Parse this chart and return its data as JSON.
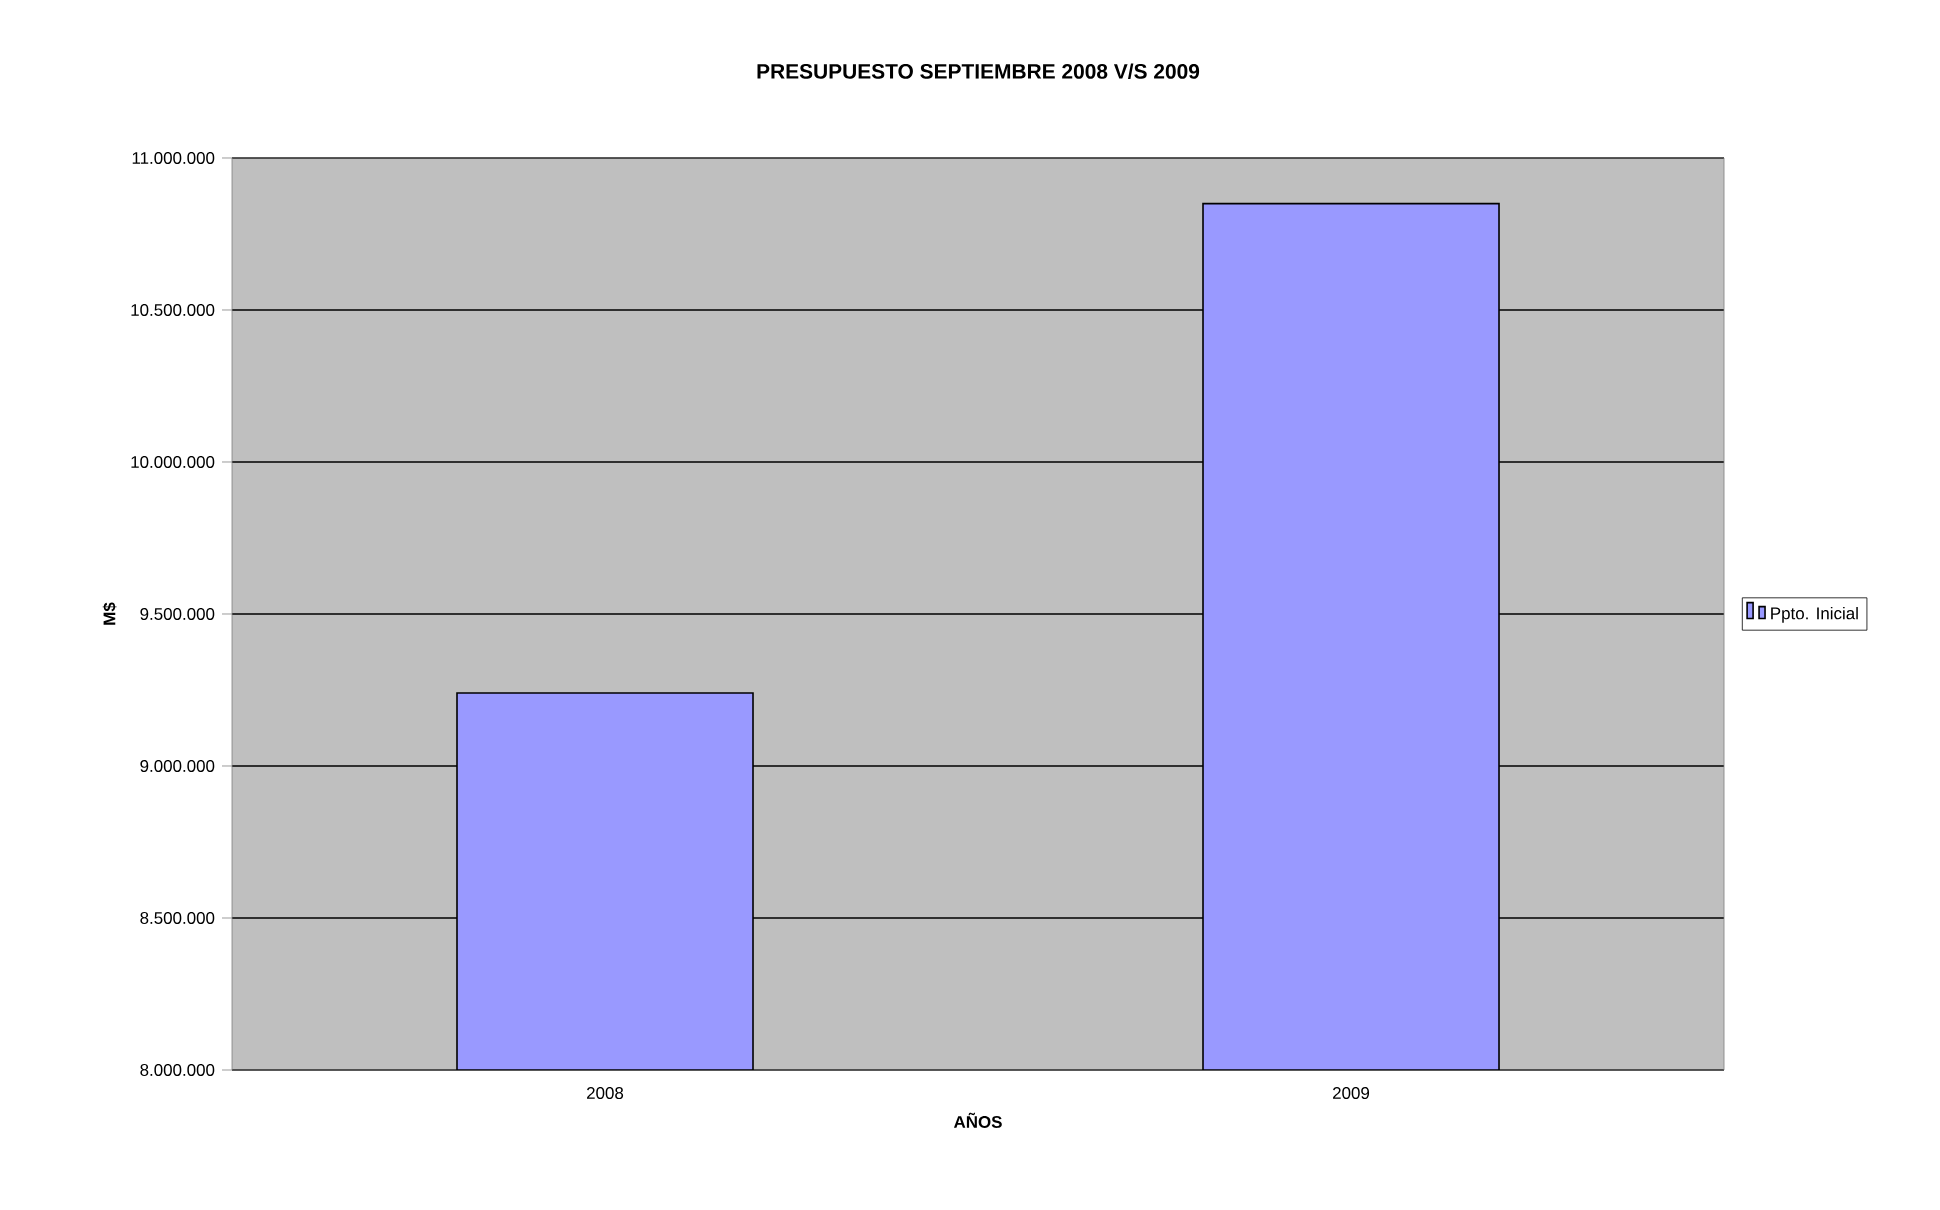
{
  "chart_data": {
    "type": "bar",
    "title": "PRESUPUESTO SEPTIEMBRE 2008 V/S 2009",
    "xlabel": "AÑOS",
    "ylabel": "M$",
    "categories": [
      "2008",
      "2009"
    ],
    "series": [
      {
        "name": "Ppto. Inicial",
        "color": "#9999ff",
        "values": [
          9240000,
          10850000
        ]
      }
    ],
    "ylim": [
      8000000,
      11000000
    ],
    "yticks": [
      {
        "value": 8000000,
        "label": "8.000.000"
      },
      {
        "value": 8500000,
        "label": "8.500.000"
      },
      {
        "value": 9000000,
        "label": "9.000.000"
      },
      {
        "value": 9500000,
        "label": "9.500.000"
      },
      {
        "value": 10000000,
        "label": "10.000.000"
      },
      {
        "value": 10500000,
        "label": "10.500.000"
      },
      {
        "value": 11000000,
        "label": "11.000.000"
      }
    ],
    "grid": "y",
    "legend": "right"
  }
}
